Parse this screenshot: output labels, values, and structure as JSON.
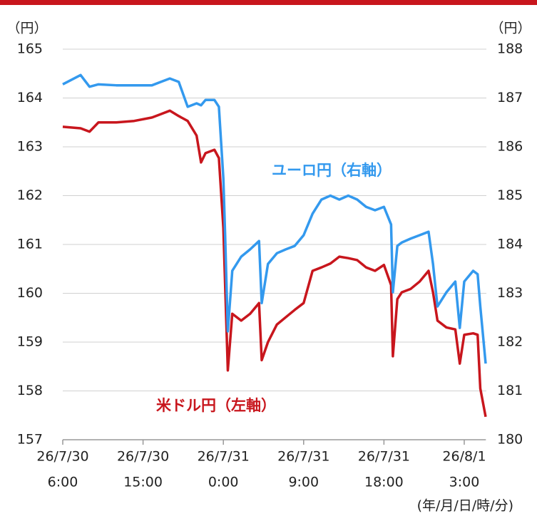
{
  "chart_data": {
    "type": "line",
    "y_unit_label": "（円）",
    "y2_unit_label": "（円）",
    "x_unit_label": "(年/月/日/時/分)",
    "annotations": [
      {
        "text": "ユーロ円（右軸）",
        "color": "#3399ee"
      },
      {
        "text": "米ドル円（左軸）",
        "color": "#c8161d"
      }
    ],
    "x": [
      6,
      8,
      9,
      10,
      12,
      14,
      16,
      17,
      18,
      19,
      20,
      21,
      21.5,
      22,
      23,
      23.5,
      24,
      24.2,
      24.5,
      25,
      26,
      27,
      28,
      28.3,
      29,
      30,
      31,
      32,
      33,
      34,
      35,
      36,
      37,
      38,
      39,
      40,
      41,
      42,
      42.8,
      43,
      43.5,
      44,
      45,
      46,
      47,
      47.5,
      48,
      49,
      50,
      50.5,
      51,
      52,
      52.5,
      52.8,
      53.4
    ],
    "xlim": [
      6,
      53.4
    ],
    "xticks": [
      {
        "value": 6,
        "label": [
          "26/7/30",
          "6:00"
        ]
      },
      {
        "value": 15,
        "label": [
          "26/7/30",
          "15:00"
        ]
      },
      {
        "value": 24,
        "label": [
          "26/7/31",
          "0:00"
        ]
      },
      {
        "value": 33,
        "label": [
          "26/7/31",
          "9:00"
        ]
      },
      {
        "value": 42,
        "label": [
          "26/7/31",
          "18:00"
        ]
      },
      {
        "value": 51,
        "label": [
          "26/8/1",
          "3:00"
        ]
      }
    ],
    "ylim": [
      157,
      165
    ],
    "yticks": [
      157,
      158,
      159,
      160,
      161,
      162,
      163,
      164,
      165
    ],
    "y2lim": [
      180,
      188
    ],
    "y2ticks": [
      180,
      181,
      182,
      183,
      184,
      185,
      186,
      187,
      188
    ],
    "grid": true,
    "series": [
      {
        "name": "米ドル円（左軸）",
        "color": "#c8161d",
        "axis": "y",
        "values": [
          163.41,
          163.38,
          163.31,
          163.5,
          163.5,
          163.53,
          163.6,
          163.67,
          163.74,
          163.63,
          163.53,
          163.23,
          162.68,
          162.87,
          162.94,
          162.77,
          161.34,
          160.17,
          158.42,
          159.58,
          159.44,
          159.58,
          159.8,
          158.63,
          159.0,
          159.36,
          159.51,
          159.66,
          159.8,
          160.46,
          160.53,
          160.61,
          160.75,
          160.72,
          160.68,
          160.53,
          160.46,
          160.58,
          160.17,
          158.71,
          159.88,
          160.02,
          160.09,
          160.24,
          160.46,
          160.02,
          159.44,
          159.3,
          159.26,
          158.56,
          159.15,
          159.18,
          159.15,
          158.05,
          157.47
        ]
      },
      {
        "name": "ユーロ円（右軸）",
        "color": "#3399ee",
        "axis": "y2",
        "values": [
          187.28,
          187.47,
          187.23,
          187.28,
          187.26,
          187.26,
          187.26,
          187.33,
          187.4,
          187.33,
          186.82,
          186.89,
          186.85,
          186.96,
          186.96,
          186.82,
          185.36,
          184.19,
          182.22,
          183.46,
          183.75,
          183.9,
          184.07,
          182.8,
          183.6,
          183.82,
          183.9,
          183.97,
          184.19,
          184.63,
          184.92,
          185.0,
          184.92,
          185.0,
          184.92,
          184.77,
          184.7,
          184.77,
          184.41,
          183.02,
          183.97,
          184.04,
          184.12,
          184.19,
          184.26,
          183.6,
          182.73,
          183.02,
          183.24,
          182.29,
          183.24,
          183.46,
          183.39,
          182.73,
          181.56
        ]
      }
    ]
  }
}
